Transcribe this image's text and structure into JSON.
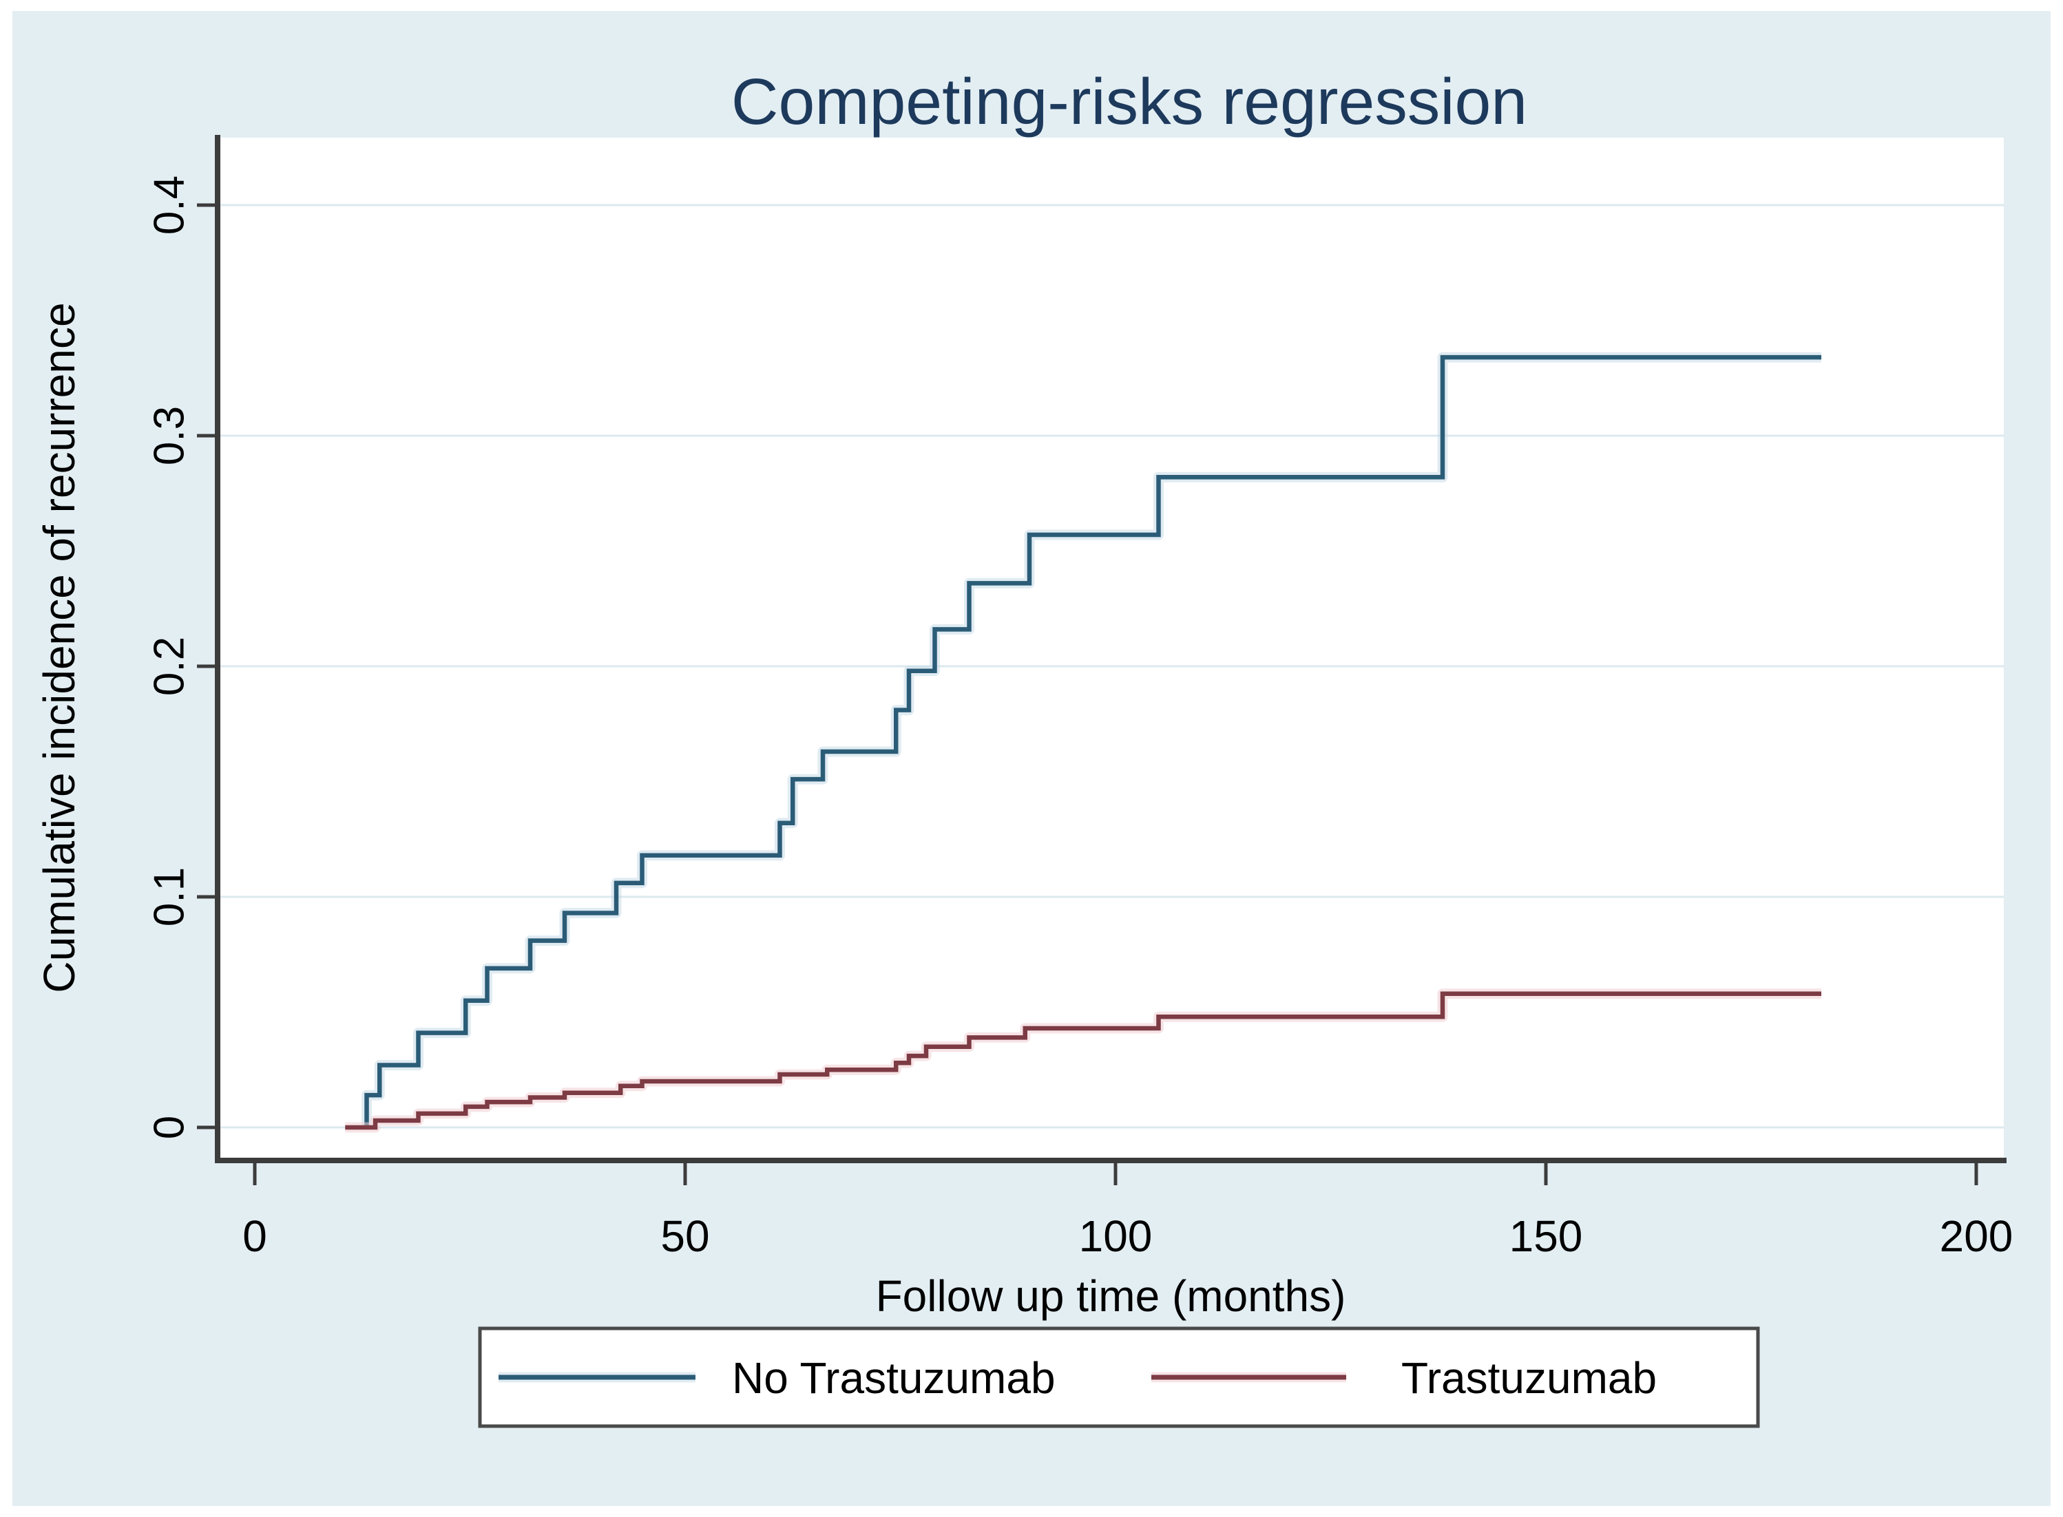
{
  "figure": {
    "title": "Competing-risks regression",
    "x_axis_label": "Follow up time (months)",
    "y_axis_label": "Cumulative incidence of recurrence"
  },
  "legend": {
    "items": [
      {
        "label": "No Trastuzumab",
        "color": "#2b5c77"
      },
      {
        "label": "Trastuzumab",
        "color": "#7d3b44"
      }
    ]
  },
  "colors": {
    "figure_background": "#e3eef3",
    "plot_background": "#ffffff",
    "gridline": "#dce9ef",
    "axis": "#3c3c3c",
    "tick_text": "#000000",
    "title_text": "#1d3a5c",
    "legend_border": "#4a4a4a"
  },
  "chart_data": {
    "type": "line",
    "subtype": "step-cumulative-incidence",
    "title": "Competing-risks regression",
    "xlabel": "Follow up time (months)",
    "ylabel": "Cumulative incidence of recurrence",
    "xlim": [
      -4,
      203
    ],
    "ylim": [
      -0.014,
      0.429
    ],
    "x_ticks": [
      0,
      50,
      100,
      150,
      200
    ],
    "y_ticks": [
      0,
      0.1,
      0.2,
      0.3,
      0.4
    ],
    "y_tick_labels": [
      "0",
      "0.1",
      "0.2",
      "0.3",
      "0.4"
    ],
    "grid": "horizontal",
    "legend_position": "bottom",
    "series": [
      {
        "name": "No Trastuzumab",
        "color": "#2b5c77",
        "start": [
          13,
          0
        ],
        "end_x": 182,
        "steps": [
          [
            13,
            0.014
          ],
          [
            14.5,
            0.027
          ],
          [
            19,
            0.041
          ],
          [
            24.5,
            0.055
          ],
          [
            27,
            0.069
          ],
          [
            32,
            0.081
          ],
          [
            36,
            0.093
          ],
          [
            42,
            0.106
          ],
          [
            45,
            0.118
          ],
          [
            61,
            0.132
          ],
          [
            62.5,
            0.151
          ],
          [
            66,
            0.163
          ],
          [
            74.5,
            0.181
          ],
          [
            76,
            0.198
          ],
          [
            79,
            0.216
          ],
          [
            83,
            0.236
          ],
          [
            90,
            0.257
          ],
          [
            105,
            0.282
          ],
          [
            138,
            0.334
          ]
        ]
      },
      {
        "name": "Trastuzumab",
        "color": "#7d3b44",
        "start": [
          10.5,
          0
        ],
        "end_x": 182,
        "steps": [
          [
            14,
            0.003
          ],
          [
            19,
            0.006
          ],
          [
            24.5,
            0.009
          ],
          [
            27,
            0.011
          ],
          [
            32,
            0.013
          ],
          [
            36,
            0.015
          ],
          [
            42.5,
            0.018
          ],
          [
            45,
            0.02
          ],
          [
            61,
            0.023
          ],
          [
            66.5,
            0.025
          ],
          [
            74.5,
            0.028
          ],
          [
            76,
            0.031
          ],
          [
            78,
            0.035
          ],
          [
            83,
            0.039
          ],
          [
            89.5,
            0.043
          ],
          [
            105,
            0.048
          ],
          [
            138,
            0.058
          ]
        ]
      }
    ]
  }
}
